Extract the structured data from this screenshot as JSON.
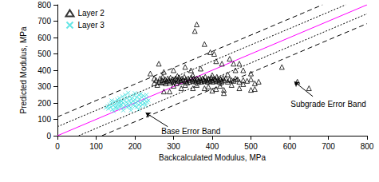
{
  "chart_data": {
    "type": "scatter",
    "xlabel": "Backcalculated Modulus, MPa",
    "ylabel": "Predicted Modulus, MPa",
    "xlim": [
      0,
      800
    ],
    "ylim": [
      0,
      800
    ],
    "xticks": [
      0,
      100,
      200,
      300,
      400,
      500,
      600,
      700,
      800
    ],
    "yticks": [
      0,
      100,
      200,
      300,
      400,
      500,
      600,
      700,
      800
    ],
    "grid": false,
    "legend": "upper left",
    "series": [
      {
        "name": "Layer 2",
        "type": "scatter",
        "marker": "triangle",
        "color": "#000000",
        "values": [
          [
            250,
            320
          ],
          [
            255,
            340
          ],
          [
            258,
            310
          ],
          [
            262,
            330
          ],
          [
            265,
            350
          ],
          [
            268,
            325
          ],
          [
            270,
            340
          ],
          [
            272,
            360
          ],
          [
            275,
            330
          ],
          [
            278,
            345
          ],
          [
            280,
            320
          ],
          [
            282,
            335
          ],
          [
            285,
            350
          ],
          [
            288,
            340
          ],
          [
            290,
            325
          ],
          [
            292,
            355
          ],
          [
            295,
            335
          ],
          [
            298,
            345
          ],
          [
            300,
            330
          ],
          [
            302,
            340
          ],
          [
            305,
            350
          ],
          [
            308,
            320
          ],
          [
            310,
            345
          ],
          [
            312,
            335
          ],
          [
            315,
            355
          ],
          [
            318,
            340
          ],
          [
            320,
            330
          ],
          [
            322,
            350
          ],
          [
            325,
            340
          ],
          [
            328,
            360
          ],
          [
            330,
            335
          ],
          [
            332,
            345
          ],
          [
            335,
            325
          ],
          [
            338,
            350
          ],
          [
            340,
            340
          ],
          [
            342,
            330
          ],
          [
            345,
            355
          ],
          [
            348,
            345
          ],
          [
            350,
            335
          ],
          [
            352,
            350
          ],
          [
            355,
            340
          ],
          [
            358,
            330
          ],
          [
            360,
            350
          ],
          [
            362,
            345
          ],
          [
            365,
            335
          ],
          [
            368,
            355
          ],
          [
            370,
            340
          ],
          [
            372,
            330
          ],
          [
            375,
            350
          ],
          [
            378,
            345
          ],
          [
            380,
            335
          ],
          [
            382,
            360
          ],
          [
            385,
            340
          ],
          [
            388,
            330
          ],
          [
            390,
            350
          ],
          [
            392,
            345
          ],
          [
            395,
            335
          ],
          [
            398,
            355
          ],
          [
            400,
            340
          ],
          [
            402,
            330
          ],
          [
            405,
            350
          ],
          [
            408,
            345
          ],
          [
            410,
            335
          ],
          [
            412,
            360
          ],
          [
            415,
            340
          ],
          [
            418,
            330
          ],
          [
            420,
            350
          ],
          [
            422,
            345
          ],
          [
            425,
            335
          ],
          [
            428,
            355
          ],
          [
            430,
            340
          ],
          [
            435,
            350
          ],
          [
            440,
            330
          ],
          [
            445,
            345
          ],
          [
            450,
            340
          ],
          [
            455,
            335
          ],
          [
            460,
            350
          ],
          [
            465,
            345
          ],
          [
            470,
            330
          ],
          [
            480,
            340
          ],
          [
            490,
            335
          ],
          [
            500,
            345
          ],
          [
            300,
            305
          ],
          [
            330,
            310
          ],
          [
            360,
            310
          ],
          [
            390,
            300
          ],
          [
            420,
            305
          ],
          [
            450,
            310
          ],
          [
            480,
            315
          ],
          [
            510,
            320
          ],
          [
            520,
            330
          ],
          [
            310,
            365
          ],
          [
            350,
            370
          ],
          [
            400,
            370
          ],
          [
            440,
            375
          ],
          [
            380,
            290
          ],
          [
            400,
            275
          ],
          [
            410,
            285
          ],
          [
            430,
            280
          ],
          [
            350,
            290
          ],
          [
            320,
            290
          ],
          [
            500,
            280
          ],
          [
            510,
            285
          ],
          [
            470,
            290
          ],
          [
            360,
            680
          ],
          [
            355,
            640
          ],
          [
            380,
            560
          ],
          [
            395,
            510
          ],
          [
            405,
            500
          ],
          [
            445,
            470
          ],
          [
            410,
            455
          ],
          [
            425,
            440
          ],
          [
            455,
            440
          ],
          [
            470,
            440
          ],
          [
            262,
            440
          ],
          [
            240,
            380
          ],
          [
            275,
            390
          ],
          [
            300,
            400
          ],
          [
            330,
            420
          ],
          [
            345,
            400
          ],
          [
            370,
            410
          ],
          [
            580,
            420
          ],
          [
            620,
            330
          ],
          [
            650,
            290
          ],
          [
            500,
            380
          ],
          [
            480,
            400
          ],
          [
            290,
            270
          ],
          [
            275,
            270
          ],
          [
            430,
            260
          ],
          [
            460,
            400
          ],
          [
            250,
            350
          ]
        ]
      },
      {
        "name": "Layer 3",
        "type": "scatter",
        "marker": "x",
        "color": "#40e0e0",
        "values": [
          [
            125,
            170
          ],
          [
            130,
            180
          ],
          [
            132,
            165
          ],
          [
            135,
            190
          ],
          [
            138,
            175
          ],
          [
            140,
            200
          ],
          [
            142,
            160
          ],
          [
            145,
            185
          ],
          [
            148,
            210
          ],
          [
            150,
            170
          ],
          [
            150,
            195
          ],
          [
            152,
            180
          ],
          [
            155,
            220
          ],
          [
            155,
            165
          ],
          [
            158,
            200
          ],
          [
            160,
            185
          ],
          [
            160,
            230
          ],
          [
            162,
            175
          ],
          [
            165,
            210
          ],
          [
            165,
            190
          ],
          [
            168,
            240
          ],
          [
            170,
            170
          ],
          [
            170,
            200
          ],
          [
            172,
            220
          ],
          [
            175,
            185
          ],
          [
            175,
            250
          ],
          [
            178,
            205
          ],
          [
            180,
            175
          ],
          [
            180,
            230
          ],
          [
            182,
            195
          ],
          [
            185,
            215
          ],
          [
            185,
            180
          ],
          [
            188,
            240
          ],
          [
            190,
            200
          ],
          [
            190,
            170
          ],
          [
            192,
            225
          ],
          [
            195,
            190
          ],
          [
            195,
            210
          ],
          [
            198,
            245
          ],
          [
            200,
            180
          ],
          [
            200,
            220
          ],
          [
            202,
            200
          ],
          [
            205,
            235
          ],
          [
            205,
            175
          ],
          [
            208,
            210
          ],
          [
            210,
            190
          ],
          [
            210,
            250
          ],
          [
            212,
            225
          ],
          [
            215,
            200
          ],
          [
            215,
            180
          ],
          [
            218,
            235
          ],
          [
            220,
            210
          ],
          [
            220,
            190
          ],
          [
            222,
            245
          ],
          [
            225,
            200
          ],
          [
            225,
            220
          ],
          [
            228,
            185
          ],
          [
            230,
            230
          ],
          [
            232,
            205
          ],
          [
            235,
            215
          ],
          [
            170,
            155
          ],
          [
            190,
            155
          ],
          [
            210,
            160
          ],
          [
            145,
            150
          ],
          [
            200,
            260
          ],
          [
            183,
            262
          ],
          [
            160,
            210
          ],
          [
            140,
            215
          ],
          [
            230,
            250
          ],
          [
            215,
            255
          ]
        ]
      },
      {
        "type": "line",
        "line_style": "solid",
        "color": "#ff00ff",
        "values": [
          [
            0,
            0
          ],
          [
            800,
            800
          ]
        ]
      },
      {
        "type": "line",
        "line_style": "dashed",
        "color": "#000000",
        "values": [
          [
            0,
            115
          ],
          [
            685,
            800
          ],
          null,
          [
            115,
            0
          ],
          [
            800,
            685
          ]
        ]
      },
      {
        "type": "line",
        "line_style": "dotted",
        "color": "#000000",
        "values": [
          [
            0,
            55
          ],
          [
            745,
            800
          ],
          null,
          [
            55,
            0
          ],
          [
            800,
            745
          ]
        ]
      }
    ],
    "annotations": [
      {
        "text": "Subgrade Error Band",
        "x": 700,
        "y": 195,
        "arrow_from": [
          660,
          240
        ],
        "arrow_to": [
          612,
          330
        ]
      },
      {
        "text": "Base Error Band",
        "x": 345,
        "y": 25,
        "arrow_from": [
          285,
          55
        ],
        "arrow_to": [
          228,
          140
        ]
      }
    ]
  }
}
